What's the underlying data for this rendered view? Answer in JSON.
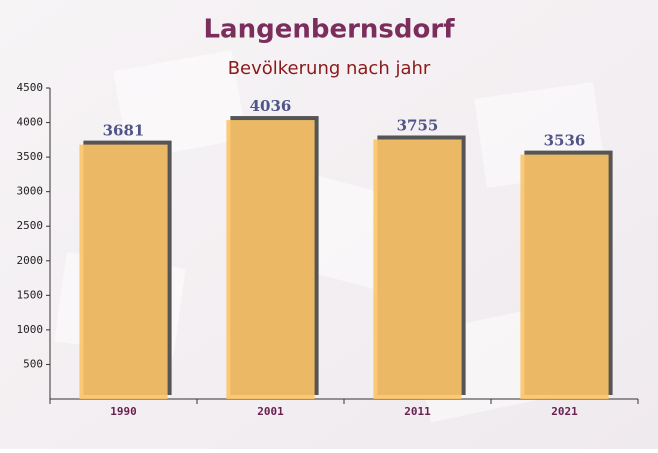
{
  "chart_data": {
    "type": "bar",
    "title": "Langenbernsdorf",
    "subtitle": "Bevölkerung nach jahr",
    "categories": [
      "1990",
      "2001",
      "2011",
      "2021"
    ],
    "values": [
      3681,
      4036,
      3755,
      3536
    ],
    "color": "#fcc468",
    "ylim": [
      0,
      4500
    ],
    "yticks": [
      500,
      1000,
      1500,
      2000,
      2500,
      3000,
      3500,
      4000,
      4500
    ]
  }
}
